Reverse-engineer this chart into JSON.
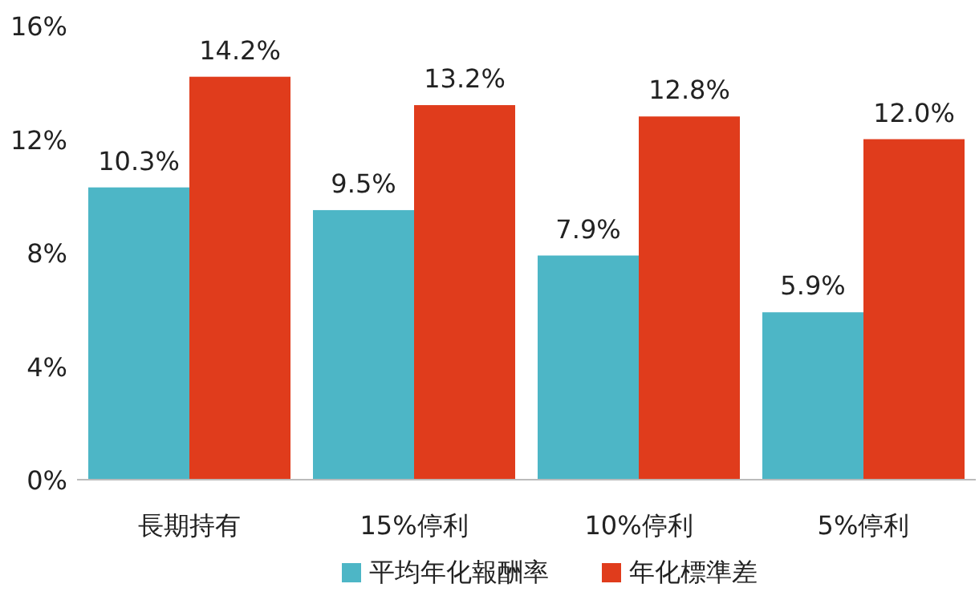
{
  "chart_data": {
    "type": "bar",
    "categories": [
      "長期持有",
      "15%停利",
      "10%停利",
      "5%停利"
    ],
    "series": [
      {
        "name": "平均年化報酬率",
        "color": "#4db6c6",
        "values": [
          10.3,
          9.5,
          7.9,
          5.9
        ],
        "value_labels": [
          "10.3%",
          "9.5%",
          "7.9%",
          "5.9%"
        ]
      },
      {
        "name": "年化標準差",
        "color": "#e03c1c",
        "values": [
          14.2,
          13.2,
          12.8,
          12.0
        ],
        "value_labels": [
          "14.2%",
          "13.2%",
          "12.8%",
          "12.0%"
        ]
      }
    ],
    "ylim": [
      0,
      16
    ],
    "yticks": [
      {
        "value": 0,
        "label": "0%"
      },
      {
        "value": 4,
        "label": "4%"
      },
      {
        "value": 8,
        "label": "8%"
      },
      {
        "value": 12,
        "label": "12%"
      },
      {
        "value": 16,
        "label": "16%"
      }
    ],
    "grid": false,
    "legend": "bottom"
  }
}
